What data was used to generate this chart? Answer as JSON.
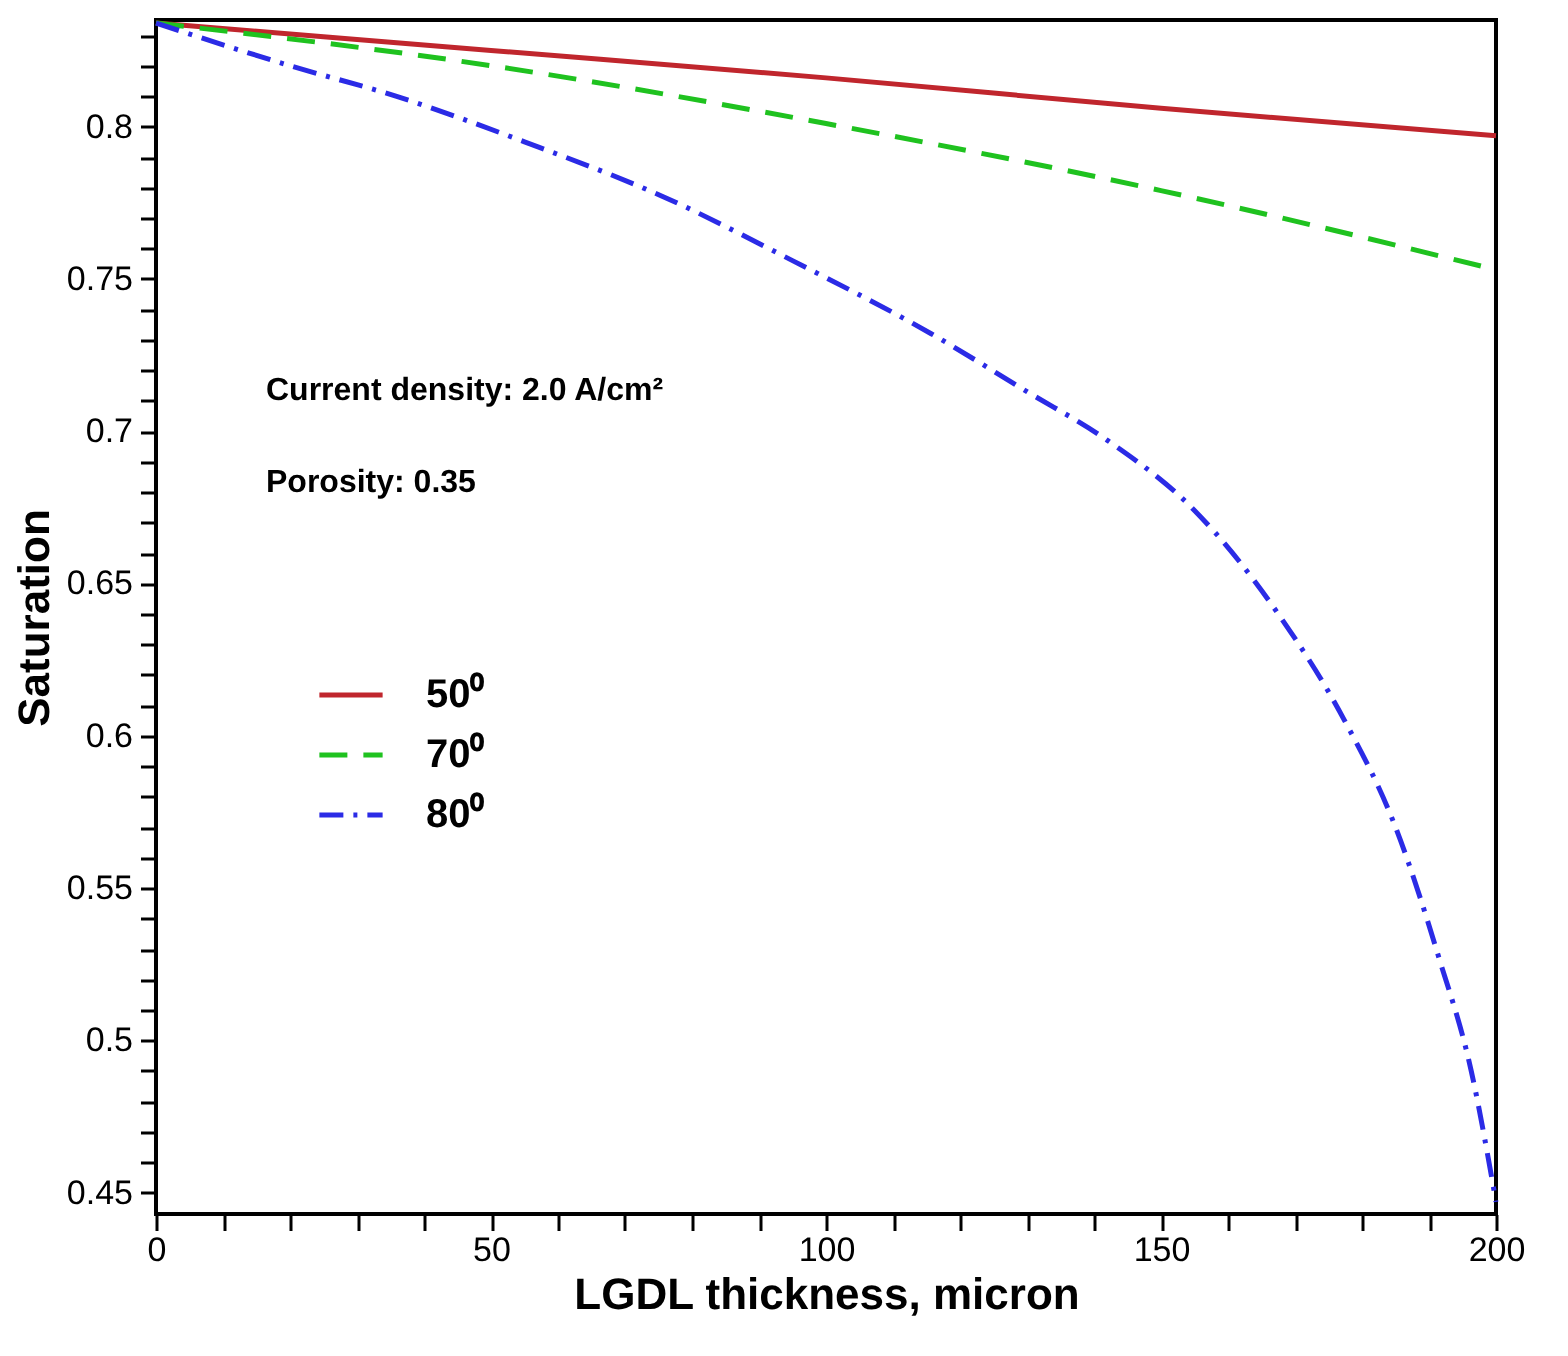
{
  "chart_data": {
    "type": "line",
    "xlabel": "LGDL thickness, micron",
    "ylabel": "Saturation",
    "annotations": [
      "Current density: 2.0 A/cm²",
      "Porosity: 0.35"
    ],
    "series": [
      {
        "name": "50⁰",
        "color": "#c0262d",
        "line_style": "solid",
        "x": [
          0,
          50,
          100,
          150,
          200
        ],
        "values": [
          0.834,
          0.825,
          0.816,
          0.806,
          0.797
        ]
      },
      {
        "name": "70⁰",
        "color": "#1fc21f",
        "line_style": "dashed",
        "x": [
          0,
          50,
          100,
          150,
          200
        ],
        "values": [
          0.834,
          0.82,
          0.801,
          0.779,
          0.753
        ]
      },
      {
        "name": "80⁰",
        "color": "#2b2be6",
        "line_style": "dash-dot",
        "x": [
          0,
          20,
          35.8,
          55,
          75.7,
          95,
          115.7,
          130,
          142,
          155,
          167.5,
          177.4,
          185,
          191.5,
          196.3,
          200
        ],
        "values": [
          0.834,
          0.82,
          0.81,
          0.795,
          0.777,
          0.756,
          0.732,
          0.713,
          0.697,
          0.674,
          0.64,
          0.605,
          0.57,
          0.527,
          0.49,
          0.447
        ]
      }
    ],
    "xlim": [
      0,
      200
    ],
    "ylim": [
      0.443,
      0.835
    ],
    "xticks": [
      0,
      {
        "value": 10,
        "label": null
      },
      {
        "value": 20,
        "label": null
      },
      {
        "value": 30,
        "label": null
      },
      {
        "value": 40,
        "label": null
      },
      50,
      {
        "value": 60,
        "label": null
      },
      {
        "value": 70,
        "label": null
      },
      {
        "value": 80,
        "label": null
      },
      {
        "value": 90,
        "label": null
      },
      100,
      {
        "value": 110,
        "label": null
      },
      {
        "value": 120,
        "label": null
      },
      {
        "value": 130,
        "label": null
      },
      {
        "value": 140,
        "label": null
      },
      150,
      {
        "value": 160,
        "label": null
      },
      {
        "value": 170,
        "label": null
      },
      {
        "value": 180,
        "label": null
      },
      {
        "value": 190,
        "label": null
      },
      200
    ],
    "yticks": [
      0.45,
      {
        "value": 0.46,
        "label": null
      },
      {
        "value": 0.47,
        "label": null
      },
      {
        "value": 0.48,
        "label": null
      },
      {
        "value": 0.49,
        "label": null
      },
      0.5,
      {
        "value": 0.51,
        "label": null
      },
      {
        "value": 0.52,
        "label": null
      },
      {
        "value": 0.53,
        "label": null
      },
      {
        "value": 0.54,
        "label": null
      },
      0.55,
      {
        "value": 0.56,
        "label": null
      },
      {
        "value": 0.57,
        "label": null
      },
      {
        "value": 0.58,
        "label": null
      },
      {
        "value": 0.59,
        "label": null
      },
      0.6,
      {
        "value": 0.61,
        "label": null
      },
      {
        "value": 0.62,
        "label": null
      },
      {
        "value": 0.63,
        "label": null
      },
      {
        "value": 0.64,
        "label": null
      },
      0.65,
      {
        "value": 0.66,
        "label": null
      },
      {
        "value": 0.67,
        "label": null
      },
      {
        "value": 0.68,
        "label": null
      },
      {
        "value": 0.69,
        "label": null
      },
      0.7,
      {
        "value": 0.71,
        "label": null
      },
      {
        "value": 0.72,
        "label": null
      },
      {
        "value": 0.73,
        "label": null
      },
      {
        "value": 0.74,
        "label": null
      },
      0.75,
      {
        "value": 0.76,
        "label": null
      },
      {
        "value": 0.77,
        "label": null
      },
      {
        "value": 0.78,
        "label": null
      },
      {
        "value": 0.79,
        "label": null
      },
      0.8,
      {
        "value": 0.81,
        "label": null
      },
      {
        "value": 0.82,
        "label": null
      },
      {
        "value": 0.83,
        "label": null
      }
    ],
    "grid": false,
    "legend": "left",
    "marker": "none"
  }
}
